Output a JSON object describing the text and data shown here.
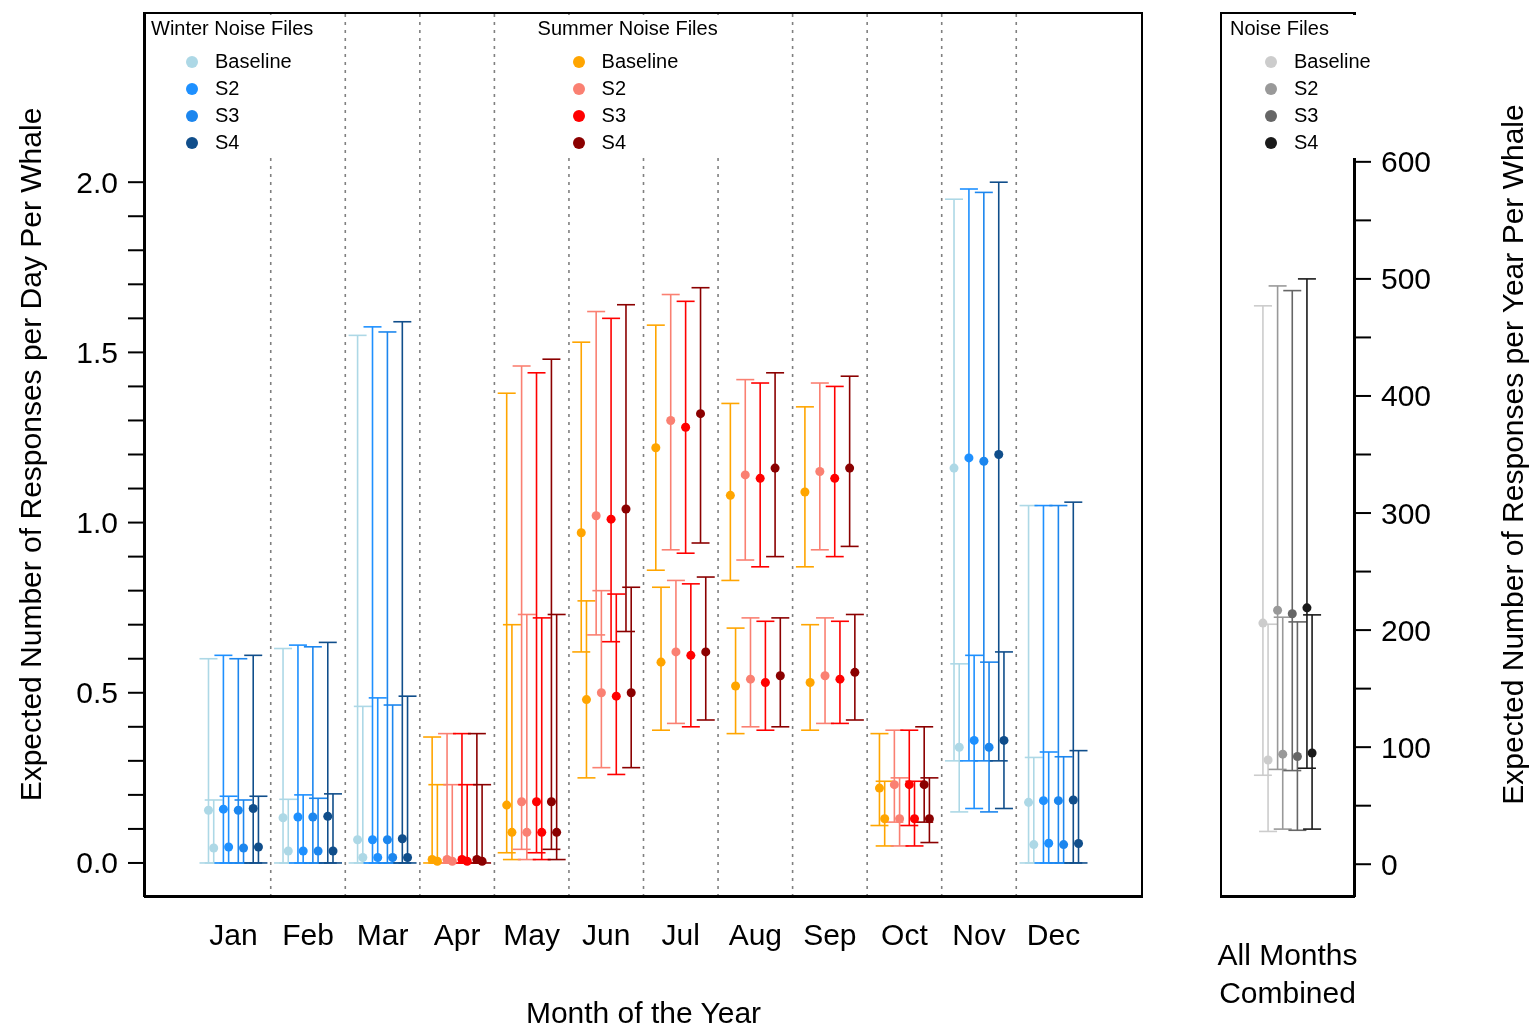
{
  "chart_data": [
    {
      "type": "scatter",
      "xlabel": "Month of the Year",
      "ylabel": "Expected Number of Responses per Day Per Whale",
      "legend_title": "Winter Noise Files",
      "annotations": [
        "Summer Noise Files"
      ],
      "legend": "top left",
      "grid": "x",
      "marker": "circle",
      "categories": [
        "Jan",
        "Feb",
        "Mar",
        "Apr",
        "May",
        "Jun",
        "Jul",
        "Aug",
        "Sep",
        "Oct",
        "Nov",
        "Dec"
      ],
      "ylim": [
        -0.1,
        2.5
      ],
      "yticks": [
        {
          "value": 0,
          "label": "0.0"
        },
        {
          "value": 0.1,
          "label": null
        },
        {
          "value": 0.2,
          "label": null
        },
        {
          "value": 0.3,
          "label": null
        },
        {
          "value": 0.4,
          "label": null
        },
        {
          "value": 0.5,
          "label": "0.5"
        },
        {
          "value": 0.6,
          "label": null
        },
        {
          "value": 0.7,
          "label": null
        },
        {
          "value": 0.8,
          "label": null
        },
        {
          "value": 0.9,
          "label": null
        },
        {
          "value": 1,
          "label": "1.0"
        },
        {
          "value": 1.1,
          "label": null
        },
        {
          "value": 1.2,
          "label": null
        },
        {
          "value": 1.3,
          "label": null
        },
        {
          "value": 1.4,
          "label": null
        },
        {
          "value": 1.5,
          "label": "1.5"
        },
        {
          "value": 1.6,
          "label": null
        },
        {
          "value": 1.7,
          "label": null
        },
        {
          "value": 1.8,
          "label": null
        },
        {
          "value": 1.9,
          "label": null
        },
        {
          "value": 2,
          "label": "2.0"
        }
      ],
      "series": [
        {
          "name": "Baseline",
          "color": "#add8e6",
          "values": [
            0.155,
            0.133,
            0.068,
            null,
            null,
            null,
            null,
            null,
            null,
            null,
            1.16,
            0.178
          ],
          "errors": [
            [
              0,
              0.6
            ],
            [
              0,
              0.63
            ],
            [
              0,
              1.55
            ],
            null,
            null,
            null,
            null,
            null,
            null,
            null,
            [
              0.3,
              1.95
            ],
            [
              0,
              1.05
            ]
          ]
        },
        {
          "color": "#add8e6",
          "values": [
            0.044,
            0.035,
            0.016,
            null,
            null,
            null,
            null,
            null,
            null,
            null,
            0.34,
            0.054
          ],
          "errors": [
            [
              0,
              0.185
            ],
            [
              0,
              0.187
            ],
            [
              0,
              0.46
            ],
            null,
            null,
            null,
            null,
            null,
            null,
            null,
            [
              0.15,
              0.585
            ],
            [
              0,
              0.31
            ]
          ]
        },
        {
          "name": "S2",
          "color": "#1e90ff",
          "values": [
            0.158,
            0.135,
            0.068,
            null,
            null,
            null,
            null,
            null,
            null,
            null,
            1.19,
            0.183
          ],
          "errors": [
            [
              0,
              0.61
            ],
            [
              0,
              0.64
            ],
            [
              0,
              1.575
            ],
            null,
            null,
            null,
            null,
            null,
            null,
            null,
            [
              0.3,
              1.98
            ],
            [
              0,
              1.05
            ]
          ]
        },
        {
          "color": "#1e90ff",
          "values": [
            0.047,
            0.035,
            0.016,
            null,
            null,
            null,
            null,
            null,
            null,
            null,
            0.36,
            0.058
          ],
          "errors": [
            [
              0,
              0.196
            ],
            [
              0,
              0.2
            ],
            [
              0,
              0.485
            ],
            null,
            null,
            null,
            null,
            null,
            null,
            null,
            [
              0.16,
              0.61
            ],
            [
              0,
              0.326
            ]
          ]
        },
        {
          "name": "S3",
          "color": "#1c86ee",
          "values": [
            0.155,
            0.135,
            0.068,
            null,
            null,
            null,
            null,
            null,
            null,
            null,
            1.18,
            0.183
          ],
          "errors": [
            [
              0,
              0.6
            ],
            [
              0,
              0.635
            ],
            [
              0,
              1.56
            ],
            null,
            null,
            null,
            null,
            null,
            null,
            null,
            [
              0.3,
              1.97
            ],
            [
              0,
              1.05
            ]
          ]
        },
        {
          "color": "#1c86ee",
          "values": [
            0.044,
            0.035,
            0.016,
            null,
            null,
            null,
            null,
            null,
            null,
            null,
            0.34,
            0.054
          ],
          "errors": [
            [
              0,
              0.185
            ],
            [
              0,
              0.19
            ],
            [
              0,
              0.464
            ],
            null,
            null,
            null,
            null,
            null,
            null,
            null,
            [
              0.15,
              0.59
            ],
            [
              0,
              0.312
            ]
          ]
        },
        {
          "name": "S4",
          "color": "#104e8b",
          "values": [
            0.16,
            0.137,
            0.071,
            null,
            null,
            null,
            null,
            null,
            null,
            null,
            1.2,
            0.185
          ],
          "errors": [
            [
              0,
              0.61
            ],
            [
              0,
              0.648
            ],
            [
              0,
              1.59
            ],
            null,
            null,
            null,
            null,
            null,
            null,
            null,
            [
              0.3,
              2
            ],
            [
              0,
              1.06
            ]
          ]
        },
        {
          "color": "#104e8b",
          "values": [
            0.047,
            0.035,
            0.016,
            null,
            null,
            null,
            null,
            null,
            null,
            null,
            0.36,
            0.057
          ],
          "errors": [
            [
              0,
              0.196
            ],
            [
              0,
              0.203
            ],
            [
              0,
              0.49
            ],
            null,
            null,
            null,
            null,
            null,
            null,
            null,
            [
              0.16,
              0.62
            ],
            [
              0,
              0.33
            ]
          ]
        },
        {
          "name": "Baseline",
          "color": "#ffa500",
          "values": [
            null,
            null,
            null,
            0.01,
            0.17,
            0.97,
            1.22,
            1.08,
            1.09,
            0.22,
            null,
            null
          ],
          "errors": [
            null,
            null,
            null,
            [
              0,
              0.37
            ],
            [
              0.03,
              1.38
            ],
            [
              0.62,
              1.53
            ],
            [
              0.86,
              1.58
            ],
            [
              0.83,
              1.35
            ],
            [
              0.87,
              1.34
            ],
            [
              0.11,
              0.38
            ],
            null,
            null
          ]
        },
        {
          "color": "#ffa500",
          "values": [
            null,
            null,
            null,
            0.005,
            0.09,
            0.48,
            0.59,
            0.52,
            0.53,
            0.13,
            null,
            null
          ],
          "errors": [
            null,
            null,
            null,
            [
              0,
              0.23
            ],
            [
              0.01,
              0.7
            ],
            [
              0.25,
              0.77
            ],
            [
              0.39,
              0.81
            ],
            [
              0.38,
              0.69
            ],
            [
              0.39,
              0.7
            ],
            [
              0.05,
              0.24
            ],
            null,
            null
          ]
        },
        {
          "name": "S2",
          "color": "#fa8072",
          "values": [
            null,
            null,
            null,
            0.01,
            0.18,
            1.02,
            1.3,
            1.14,
            1.15,
            0.23,
            null,
            null
          ],
          "errors": [
            null,
            null,
            null,
            [
              0,
              0.38
            ],
            [
              0.04,
              1.46
            ],
            [
              0.67,
              1.62
            ],
            [
              0.92,
              1.67
            ],
            [
              0.89,
              1.42
            ],
            [
              0.92,
              1.41
            ],
            [
              0.12,
              0.39
            ],
            null,
            null
          ]
        },
        {
          "color": "#fa8072",
          "values": [
            null,
            null,
            null,
            0.005,
            0.09,
            0.5,
            0.62,
            0.54,
            0.55,
            0.13,
            null,
            null
          ],
          "errors": [
            null,
            null,
            null,
            [
              0,
              0.23
            ],
            [
              0.01,
              0.73
            ],
            [
              0.28,
              0.8
            ],
            [
              0.41,
              0.83
            ],
            [
              0.4,
              0.72
            ],
            [
              0.41,
              0.72
            ],
            [
              0.05,
              0.25
            ],
            null,
            null
          ]
        },
        {
          "name": "S3",
          "color": "#ff0000",
          "values": [
            null,
            null,
            null,
            0.01,
            0.18,
            1.01,
            1.28,
            1.13,
            1.13,
            0.23,
            null,
            null
          ],
          "errors": [
            null,
            null,
            null,
            [
              0,
              0.38
            ],
            [
              0.03,
              1.44
            ],
            [
              0.65,
              1.6
            ],
            [
              0.91,
              1.65
            ],
            [
              0.87,
              1.41
            ],
            [
              0.9,
              1.4
            ],
            [
              0.11,
              0.39
            ],
            null,
            null
          ]
        },
        {
          "color": "#ff0000",
          "values": [
            null,
            null,
            null,
            0.005,
            0.09,
            0.49,
            0.61,
            0.53,
            0.54,
            0.13,
            null,
            null
          ],
          "errors": [
            null,
            null,
            null,
            [
              0,
              0.23
            ],
            [
              0.01,
              0.72
            ],
            [
              0.26,
              0.79
            ],
            [
              0.4,
              0.82
            ],
            [
              0.39,
              0.71
            ],
            [
              0.41,
              0.71
            ],
            [
              0.05,
              0.24
            ],
            null,
            null
          ]
        },
        {
          "name": "S4",
          "color": "#8b0000",
          "values": [
            null,
            null,
            null,
            0.01,
            0.18,
            1.04,
            1.32,
            1.16,
            1.16,
            0.23,
            null,
            null
          ],
          "errors": [
            null,
            null,
            null,
            [
              0,
              0.38
            ],
            [
              0.04,
              1.48
            ],
            [
              0.68,
              1.64
            ],
            [
              0.94,
              1.69
            ],
            [
              0.9,
              1.44
            ],
            [
              0.93,
              1.43
            ],
            [
              0.12,
              0.4
            ],
            null,
            null
          ]
        },
        {
          "color": "#8b0000",
          "values": [
            null,
            null,
            null,
            0.005,
            0.09,
            0.5,
            0.62,
            0.55,
            0.56,
            0.13,
            null,
            null
          ],
          "errors": [
            null,
            null,
            null,
            [
              0,
              0.23
            ],
            [
              0.01,
              0.73
            ],
            [
              0.28,
              0.81
            ],
            [
              0.42,
              0.84
            ],
            [
              0.4,
              0.72
            ],
            [
              0.42,
              0.73
            ],
            [
              0.06,
              0.25
            ],
            null,
            null
          ]
        }
      ]
    },
    {
      "type": "scatter",
      "ylabel": "Expected Number of Responses per Year Per Whale",
      "legend_title": "Noise Files",
      "legend": "top",
      "marker": "circle",
      "categories": [
        "All Months\nCombined"
      ],
      "ylim": [
        -28,
        728
      ],
      "yticks": [
        0,
        {
          "value": 50,
          "label": null
        },
        100,
        {
          "value": 150,
          "label": null
        },
        200,
        {
          "value": 250,
          "label": null
        },
        300,
        {
          "value": 350,
          "label": null
        },
        400,
        {
          "value": 450,
          "label": null
        },
        500,
        {
          "value": 550,
          "label": null
        },
        600
      ],
      "series": [
        {
          "name": "Baseline",
          "color": "#cccccc",
          "values": [
            206
          ],
          "errors": [
            [
              76,
              477
            ]
          ]
        },
        {
          "color": "#cccccc",
          "values": [
            89
          ],
          "errors": [
            [
              28,
              205
            ]
          ]
        },
        {
          "name": "S2",
          "color": "#999999",
          "values": [
            217
          ],
          "errors": [
            [
              81,
              494
            ]
          ]
        },
        {
          "color": "#999999",
          "values": [
            94
          ],
          "errors": [
            [
              30,
              211
            ]
          ]
        },
        {
          "name": "S3",
          "color": "#666666",
          "values": [
            214
          ],
          "errors": [
            [
              80,
              490
            ]
          ]
        },
        {
          "color": "#666666",
          "values": [
            92
          ],
          "errors": [
            [
              29,
              207
            ]
          ]
        },
        {
          "name": "S4",
          "color": "#1a1a1a",
          "values": [
            219
          ],
          "errors": [
            [
              82,
              500
            ]
          ]
        },
        {
          "color": "#1a1a1a",
          "values": [
            95
          ],
          "errors": [
            [
              30,
              213
            ]
          ]
        }
      ]
    }
  ]
}
